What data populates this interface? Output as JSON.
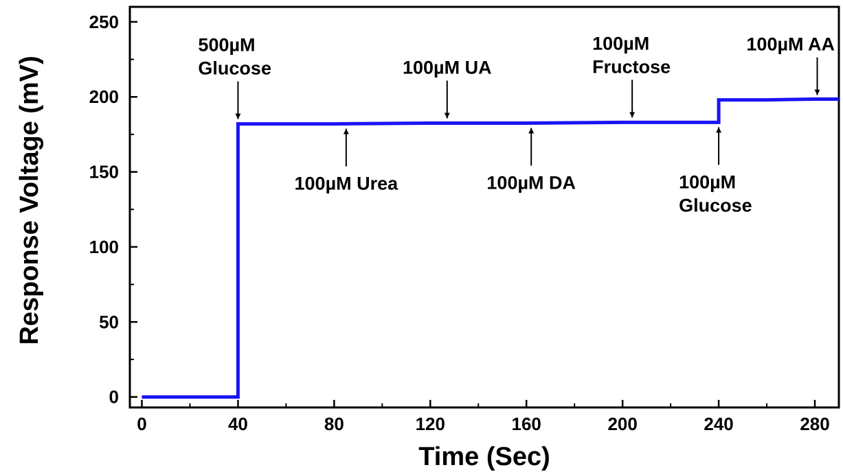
{
  "chart_data": {
    "type": "line",
    "xlabel": "Time (Sec)",
    "ylabel": "Response Voltage (mV)",
    "xlim": [
      -5,
      290
    ],
    "ylim": [
      -7,
      260
    ],
    "xticks": [
      0,
      40,
      80,
      120,
      160,
      200,
      240,
      280
    ],
    "yticks": [
      0,
      50,
      100,
      150,
      200,
      250
    ],
    "grid": false,
    "series": [
      {
        "color": "#1a14f5",
        "x": [
          0,
          40,
          40,
          80,
          120,
          160,
          200,
          240,
          240,
          260,
          280,
          290
        ],
        "y": [
          0,
          0,
          182,
          182,
          182.5,
          182.5,
          183,
          183,
          198,
          198,
          198.5,
          198.5
        ]
      }
    ],
    "annotations": [
      {
        "lines": [
          "500µM",
          "Glucose"
        ],
        "x": 40,
        "y": 182,
        "arrow": "down"
      },
      {
        "lines": [
          "100µM Urea"
        ],
        "x": 85,
        "y": 182,
        "arrow": "up"
      },
      {
        "lines": [
          "100µM UA"
        ],
        "x": 127,
        "y": 182.5,
        "arrow": "down"
      },
      {
        "lines": [
          "100µM DA"
        ],
        "x": 162,
        "y": 182.5,
        "arrow": "up"
      },
      {
        "lines": [
          "100µM",
          "Fructose"
        ],
        "x": 204,
        "y": 183,
        "arrow": "down"
      },
      {
        "lines": [
          "100µM",
          "Glucose"
        ],
        "x": 240,
        "y": 183,
        "arrow": "up"
      },
      {
        "lines": [
          "100µM AA"
        ],
        "x": 281,
        "y": 198,
        "arrow": "down"
      }
    ]
  }
}
